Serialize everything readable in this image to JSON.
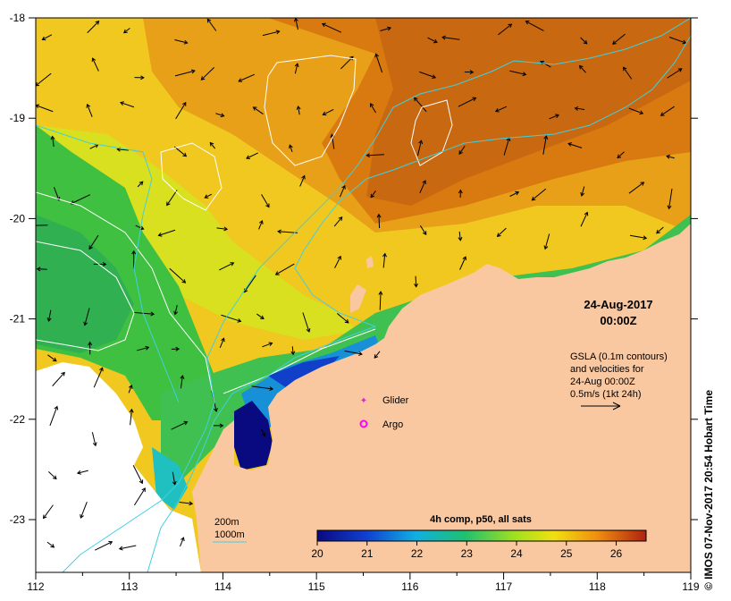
{
  "map": {
    "date": "24-Aug-2017",
    "time": "00:00Z",
    "legend_lines": [
      "GSLA (0.1m contours)",
      "and velocities for",
      "24-Aug 00:00Z",
      "0.5m/s (1kt 24h)"
    ],
    "markers": [
      {
        "label": "Glider",
        "color": "#e020e0"
      },
      {
        "label": "Argo",
        "color": "#ff00ff"
      }
    ],
    "contour_legend": [
      {
        "label": "200m",
        "color": "#40d0e0"
      },
      {
        "label": "1000m",
        "color": "#40d0e0"
      }
    ],
    "colorbar": {
      "title": "4h comp, p50, all sats",
      "ticks": [
        "20",
        "21",
        "22",
        "23",
        "24",
        "25",
        "26"
      ],
      "min": 20,
      "max": 26.6
    },
    "x_ticks": [
      "112",
      "113",
      "114",
      "115",
      "116",
      "117",
      "118",
      "119"
    ],
    "y_ticks": [
      "-18",
      "-19",
      "-20",
      "-21",
      "-22",
      "-23"
    ],
    "credit": "© IMOS 07-Nov-2017 20:54 Hobart Time",
    "colors": {
      "land": "#fac8a0",
      "contour": "#ffffff",
      "isobath": "#40d0e0",
      "nodata": "#ffffff"
    }
  }
}
